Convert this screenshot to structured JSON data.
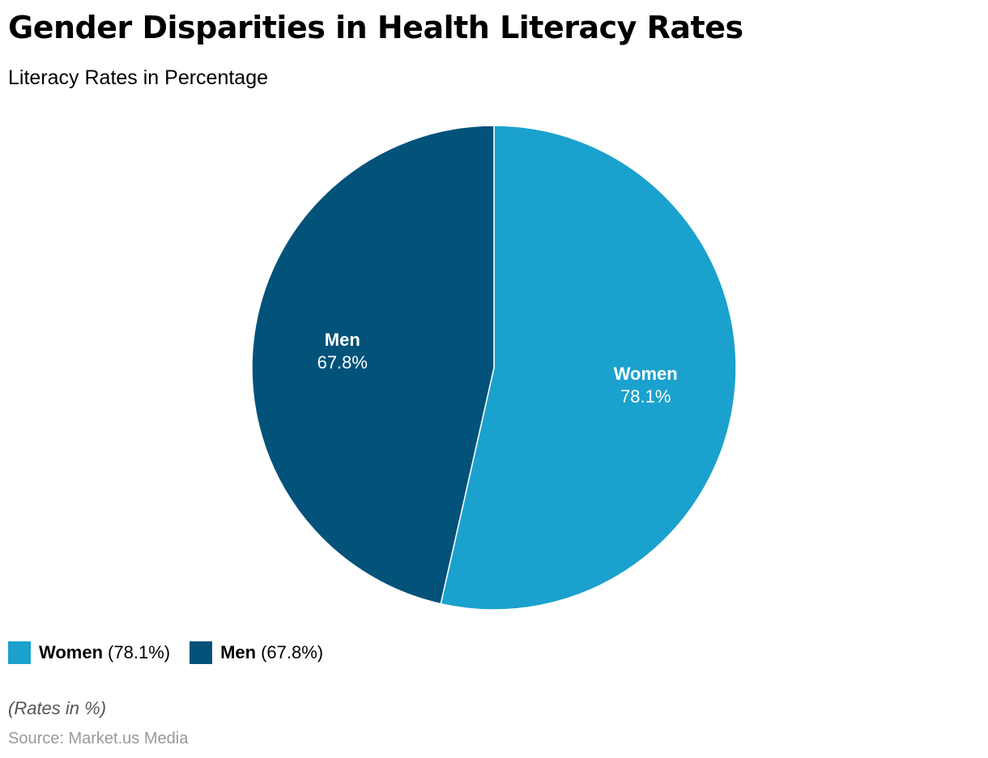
{
  "chart_data": {
    "type": "pie",
    "title": "Gender Disparities in Health Literacy Rates",
    "subtitle": "Literacy Rates in Percentage",
    "slices": [
      {
        "name": "Women",
        "value": 78.1,
        "label": "78.1%",
        "color": "#1ba1cd"
      },
      {
        "name": "Men",
        "value": 67.8,
        "label": "67.8%",
        "color": "#02527a"
      }
    ],
    "legend": {
      "placement": "bottom-left",
      "items": [
        {
          "name": "Women",
          "value_text": "(78.1%)",
          "color": "#1ba1cd"
        },
        {
          "name": "Men",
          "value_text": "(67.8%)",
          "color": "#02527a"
        }
      ]
    }
  },
  "footer": {
    "note": "(Rates in %)",
    "source": "Source: Market.us Media"
  }
}
